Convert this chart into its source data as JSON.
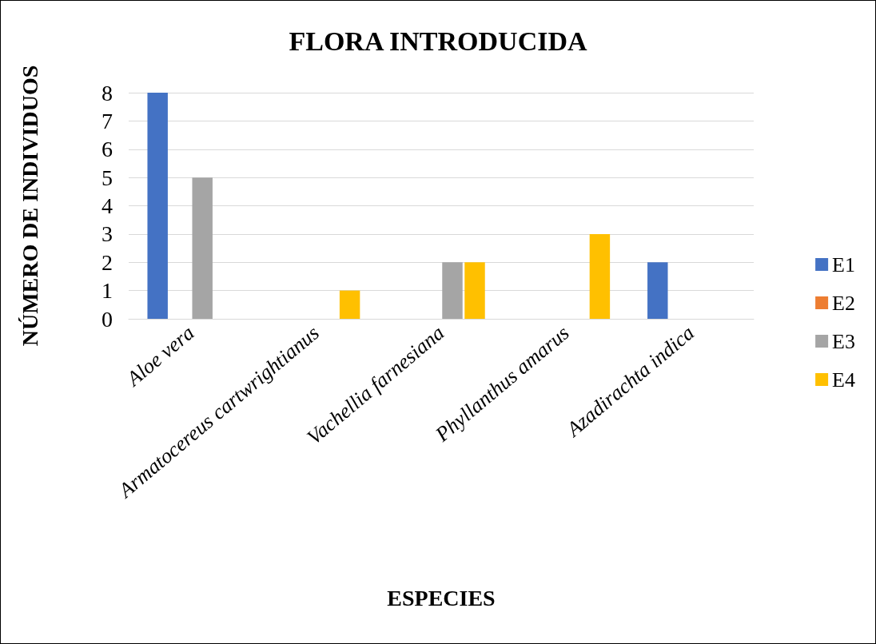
{
  "chart_data": {
    "type": "bar",
    "title": "FLORA INTRODUCIDA",
    "xlabel": "ESPECIES",
    "ylabel": "NÚMERO DE INDIVIDUOS",
    "categories": [
      "Aloe vera",
      "Armatocereus cartwrightianus",
      "Vachellia farnesiana",
      "Phyllanthus amarus",
      "Azadirachta indica"
    ],
    "series": [
      {
        "name": "E1",
        "color": "#4472c4",
        "values": [
          8,
          0,
          0,
          0,
          2
        ]
      },
      {
        "name": "E2",
        "color": "#ed7d31",
        "values": [
          0,
          0,
          0,
          0,
          0
        ]
      },
      {
        "name": "E3",
        "color": "#a5a5a5",
        "values": [
          5,
          0,
          2,
          0,
          0
        ]
      },
      {
        "name": "E4",
        "color": "#ffc000",
        "values": [
          0,
          1,
          2,
          3,
          0
        ]
      }
    ],
    "ylim": [
      0,
      8
    ],
    "yticks": [
      0,
      1,
      2,
      3,
      4,
      5,
      6,
      7,
      8
    ],
    "grid": "y",
    "legend": "right"
  }
}
